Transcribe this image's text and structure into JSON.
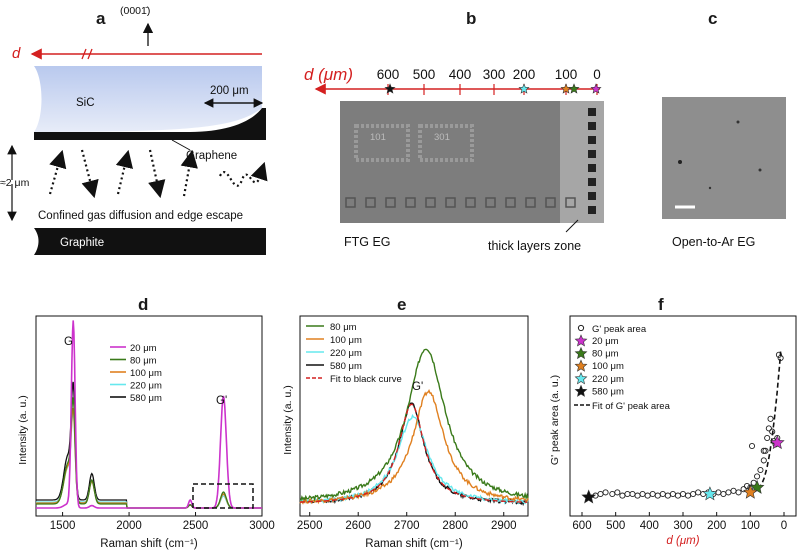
{
  "panel_labels": {
    "a": "a",
    "b": "b",
    "c": "c",
    "d": "d",
    "e": "e",
    "f": "f"
  },
  "panel_a": {
    "orientation": "(0001̄)",
    "d_label": "d",
    "sic": "SiC",
    "scale": "200 μm",
    "graphene": "Graphene",
    "gap": "≈2 μm",
    "caption": "Confined gas diffusion and edge escape",
    "graphite": "Graphite"
  },
  "panel_b": {
    "axis_label": "d (μm)",
    "ticks": [
      "600",
      "500",
      "400",
      "300",
      "200",
      "100",
      "0"
    ],
    "chip_marks": [
      "101",
      "301"
    ],
    "sample": "FTG EG",
    "zone": "thick layers zone"
  },
  "panel_c": {
    "sample": "Open-to-Ar EG"
  },
  "colors": {
    "s20": "#cc33cc",
    "s80": "#3a7a1a",
    "s100": "#e08020",
    "s220": "#66e8ee",
    "s580": "#111111",
    "red": "#d42020"
  },
  "chart_data": [
    {
      "type": "line",
      "title": "d",
      "xlabel": "Raman shift (cm⁻¹)",
      "ylabel": "Intensity (a. u.)",
      "xlim": [
        1300,
        3000
      ],
      "xticks": [
        1500,
        2000,
        2500,
        3000
      ],
      "peaks": {
        "G": "G",
        "Gp": "G'"
      },
      "series": [
        {
          "name": "20 μm",
          "color": "#cc33cc"
        },
        {
          "name": "80 μm",
          "color": "#3a7a1a"
        },
        {
          "name": "100 μm",
          "color": "#e08020"
        },
        {
          "name": "220 μm",
          "color": "#66e8ee"
        },
        {
          "name": "580 μm",
          "color": "#111111"
        }
      ]
    },
    {
      "type": "line",
      "title": "e",
      "xlabel": "Raman shift (cm⁻¹)",
      "ylabel": "Intensity (a. u.)",
      "xlim": [
        2480,
        2950
      ],
      "xticks": [
        2500,
        2600,
        2700,
        2800,
        2900
      ],
      "peak": "G'",
      "series": [
        {
          "name": "80 μm",
          "color": "#3a7a1a",
          "center": 2740,
          "height": 1.0,
          "width": 48
        },
        {
          "name": "100 μm",
          "color": "#e08020",
          "center": 2745,
          "height": 0.72,
          "width": 40
        },
        {
          "name": "220 μm",
          "color": "#66e8ee",
          "center": 2712,
          "height": 0.56,
          "width": 38
        },
        {
          "name": "580 μm",
          "color": "#111111",
          "center": 2710,
          "height": 0.64,
          "width": 32
        }
      ],
      "fit_label": "Fit to black curve"
    },
    {
      "type": "scatter",
      "title": "f",
      "xlabel": "d (μm)",
      "ylabel": "G' peak area (a. u.)",
      "xlim": [
        600,
        0
      ],
      "xticks": [
        600,
        500,
        400,
        300,
        200,
        100,
        0
      ],
      "points": [
        [
          580,
          0.03
        ],
        [
          560,
          0.04
        ],
        [
          545,
          0.05
        ],
        [
          530,
          0.06
        ],
        [
          510,
          0.05
        ],
        [
          495,
          0.06
        ],
        [
          480,
          0.04
        ],
        [
          465,
          0.05
        ],
        [
          450,
          0.05
        ],
        [
          435,
          0.04
        ],
        [
          420,
          0.05
        ],
        [
          405,
          0.04
        ],
        [
          390,
          0.05
        ],
        [
          375,
          0.04
        ],
        [
          360,
          0.05
        ],
        [
          345,
          0.04
        ],
        [
          330,
          0.05
        ],
        [
          315,
          0.04
        ],
        [
          300,
          0.05
        ],
        [
          285,
          0.04
        ],
        [
          270,
          0.05
        ],
        [
          255,
          0.06
        ],
        [
          240,
          0.05
        ],
        [
          225,
          0.06
        ],
        [
          210,
          0.05
        ],
        [
          195,
          0.06
        ],
        [
          180,
          0.05
        ],
        [
          165,
          0.06
        ],
        [
          150,
          0.07
        ],
        [
          135,
          0.06
        ],
        [
          120,
          0.08
        ],
        [
          110,
          0.1
        ],
        [
          100,
          0.09
        ],
        [
          90,
          0.12
        ],
        [
          80,
          0.16
        ],
        [
          70,
          0.2
        ],
        [
          60,
          0.26
        ],
        [
          55,
          0.32
        ],
        [
          50,
          0.4
        ],
        [
          45,
          0.46
        ],
        [
          40,
          0.52
        ],
        [
          35,
          0.44
        ],
        [
          30,
          0.38
        ],
        [
          25,
          0.36
        ],
        [
          20,
          0.4
        ],
        [
          15,
          0.92
        ],
        [
          10,
          0.9
        ],
        [
          95,
          0.35
        ],
        [
          60,
          0.32
        ]
      ],
      "stars": [
        {
          "name": "20 μm",
          "x": 20,
          "y": 0.37,
          "color": "#cc33cc"
        },
        {
          "name": "80 μm",
          "x": 80,
          "y": 0.09,
          "color": "#3a7a1a"
        },
        {
          "name": "100 μm",
          "x": 100,
          "y": 0.06,
          "color": "#e08020"
        },
        {
          "name": "220 μm",
          "x": 220,
          "y": 0.05,
          "color": "#66e8ee"
        },
        {
          "name": "580 μm",
          "x": 580,
          "y": 0.03,
          "color": "#111111"
        }
      ],
      "legend": {
        "points": "G' peak area",
        "fit": "Fit of G' peak area"
      }
    }
  ]
}
